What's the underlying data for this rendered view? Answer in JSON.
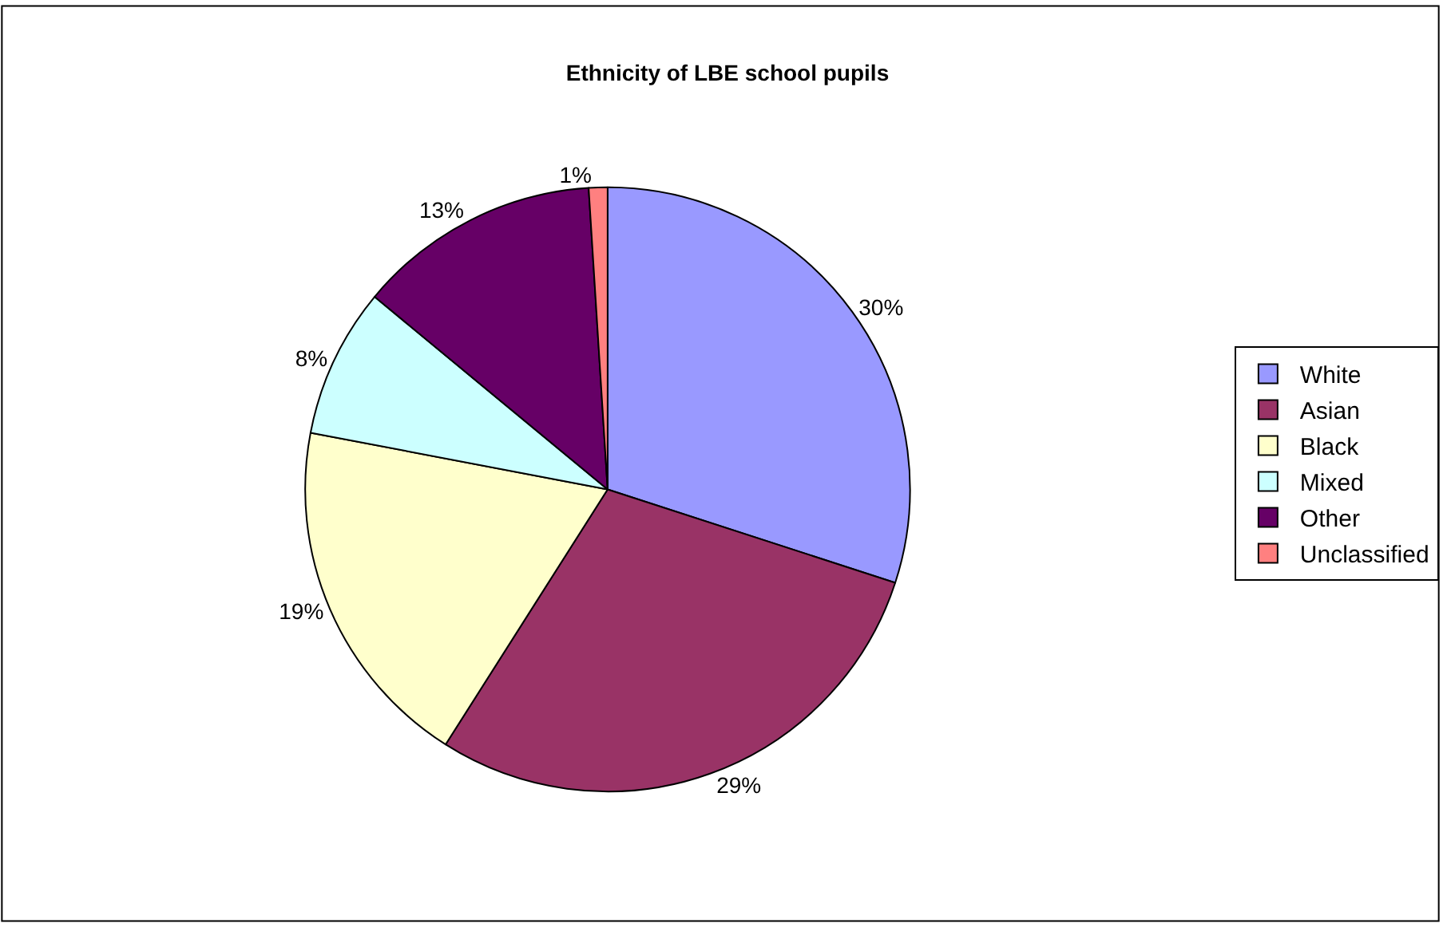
{
  "chart_data": {
    "type": "pie",
    "title": "Ethnicity of LBE school pupils",
    "categories": [
      "White",
      "Asian",
      "Black",
      "Mixed",
      "Other",
      "Unclassified"
    ],
    "values": [
      30,
      29,
      19,
      8,
      13,
      1
    ],
    "colors": [
      "#9999ff",
      "#993366",
      "#ffffcc",
      "#ccffff",
      "#660066",
      "#ff8080"
    ],
    "value_labels": [
      "30%",
      "29%",
      "19%",
      "8%",
      "13%",
      "1%"
    ],
    "legend": "right"
  }
}
